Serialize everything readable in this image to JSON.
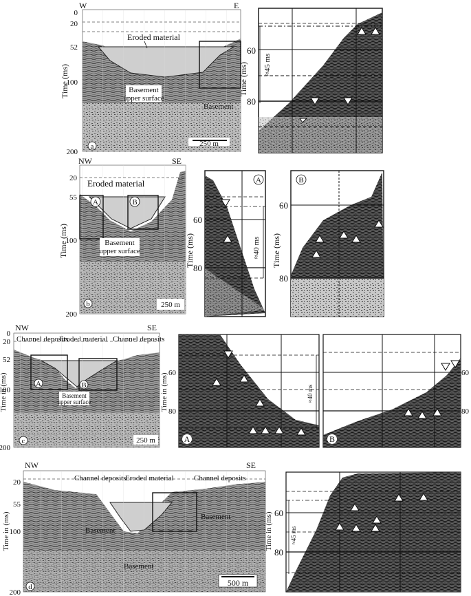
{
  "colors": {
    "paper": "#ffffff",
    "ink": "#111111",
    "eroded_fill": "#cfcfcf",
    "seismic_light": "#bdbdbd",
    "seismic_dark": "#3a3a3a"
  },
  "panel_a": {
    "letter": "a",
    "west": "W",
    "east": "E",
    "axis_title": "Time (ms)",
    "ticks": [
      "0",
      "20",
      "52",
      "100",
      "200"
    ],
    "eroded_label": "Eroded material",
    "basement_surface_label_1": "Basement",
    "basement_surface_label_2": "upper surface",
    "basement_label": "Basement",
    "scale_label": "250 m",
    "zoom": {
      "axis_title": "Time (ms)",
      "ticks": [
        "60",
        "80"
      ],
      "interval_label": "≈45 ms"
    }
  },
  "panel_b": {
    "letter": "b",
    "west": "NW",
    "east": "SE",
    "axis_title": "Time (ms)",
    "ticks": [
      "20",
      "55",
      "100",
      "200"
    ],
    "eroded_label": "Eroded material",
    "box_a": "A",
    "box_b": "B",
    "basement_surface_label_1": "Basement",
    "basement_surface_label_2": "upper surface",
    "scale_label": "250 m",
    "zoom_a": {
      "label": "A",
      "axis_title": "Time (ms)",
      "ticks": [
        "60",
        "80"
      ],
      "interval_label": "≈40 ms"
    },
    "zoom_b": {
      "label": "B",
      "axis_title": "Time (ms)",
      "ticks": [
        "60",
        "80"
      ]
    }
  },
  "panel_c": {
    "letter": "c",
    "west": "NW",
    "east": "SE",
    "axis_title": "Time in (ms)",
    "ticks": [
      "0",
      "20",
      "52",
      "100",
      "200"
    ],
    "channel_left": "Channel deposits",
    "eroded_label": "Eroded material",
    "channel_right": "Channel deposits",
    "box_a": "A",
    "box_b": "B",
    "basement_surface_label_1": "Basement",
    "basement_surface_label_2": "upper surface",
    "scale_label": "250 m",
    "zoom_a": {
      "label": "A",
      "axis_title": "Time in (ms)",
      "ticks": [
        "60",
        "80"
      ],
      "interval_label": "≈40 ms"
    },
    "zoom_b": {
      "label": "B",
      "ticks": [
        "60",
        "80"
      ]
    }
  },
  "panel_d": {
    "letter": "d",
    "west": "NW",
    "east": "SE",
    "axis_title": "Time in (ms)",
    "ticks": [
      "20",
      "55",
      "100",
      "200"
    ],
    "channel_left": "Channel deposits",
    "eroded_label": "Eroded material",
    "channel_right": "Channel deposits",
    "basement_right": "Basement",
    "basement_left": "Basement",
    "basement_bottom": "Basement",
    "scale_label": "500 m",
    "zoom": {
      "axis_title": "Time in (ms)",
      "ticks": [
        "60",
        "80"
      ],
      "interval_label": "≈45 ms"
    }
  }
}
